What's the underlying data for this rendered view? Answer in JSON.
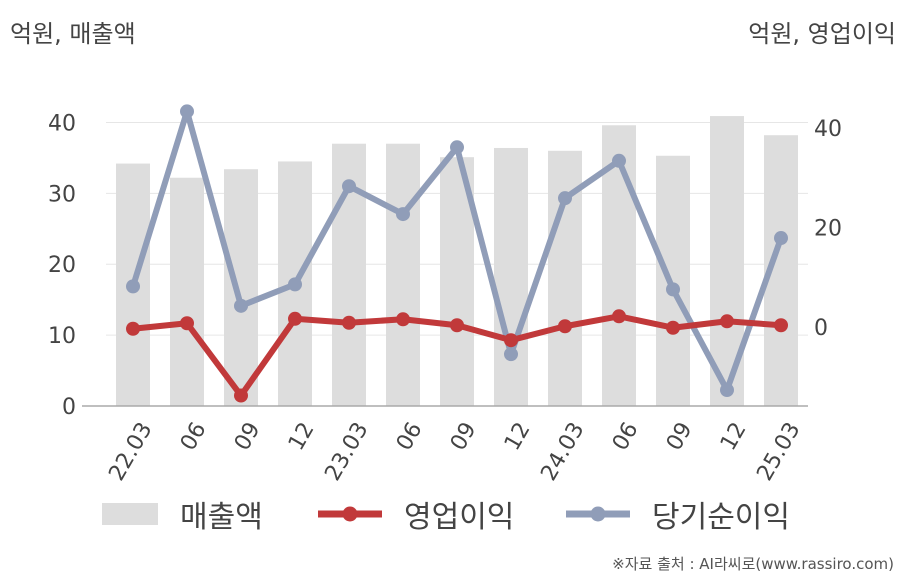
{
  "units": {
    "left": "억원, 매출액",
    "right": "억원, 영업이익"
  },
  "source": "※자료 출처 : AI라씨로(www.rassiro.com)",
  "colors": {
    "revenue": "#dddddd",
    "operating_profit": "#c1393a",
    "net_income": "#909db8",
    "grid": "#e6e6e6",
    "axis": "#aaaaaa"
  },
  "chart_data": {
    "type": "bar+line",
    "categories": [
      "22.03",
      "06",
      "09",
      "12",
      "23.03",
      "06",
      "09",
      "12",
      "24.03",
      "06",
      "09",
      "12",
      "25.03"
    ],
    "left_axis": {
      "ticks": [
        "0",
        "10",
        "20",
        "30",
        "40"
      ],
      "range": [
        0,
        45
      ]
    },
    "right_axis": {
      "ticks": [
        "0",
        "20",
        "40"
      ],
      "range": [
        -15.8,
        48.2
      ]
    },
    "series": [
      {
        "name": "매출액",
        "type": "bar",
        "axis": "left",
        "values": [
          34.2,
          32.2,
          33.4,
          34.5,
          37.0,
          37.0,
          35.1,
          36.4,
          36.0,
          39.6,
          35.3,
          40.9,
          38.2
        ]
      },
      {
        "name": "영업이익",
        "type": "line",
        "axis": "right",
        "values": [
          -0.3,
          0.8,
          -13.7,
          1.7,
          0.9,
          1.6,
          0.4,
          -2.6,
          0.2,
          2.2,
          -0.1,
          1.2,
          0.4
        ]
      },
      {
        "name": "당기순이익",
        "type": "line",
        "axis": "right",
        "values": [
          8.2,
          43.3,
          4.3,
          8.6,
          28.3,
          22.7,
          36.1,
          -5.4,
          25.9,
          33.4,
          7.6,
          -12.6,
          17.9
        ]
      }
    ]
  },
  "legend": [
    {
      "label": "매출액",
      "kind": "bar"
    },
    {
      "label": "영업이익",
      "kind": "line"
    },
    {
      "label": "당기순이익",
      "kind": "line"
    }
  ]
}
